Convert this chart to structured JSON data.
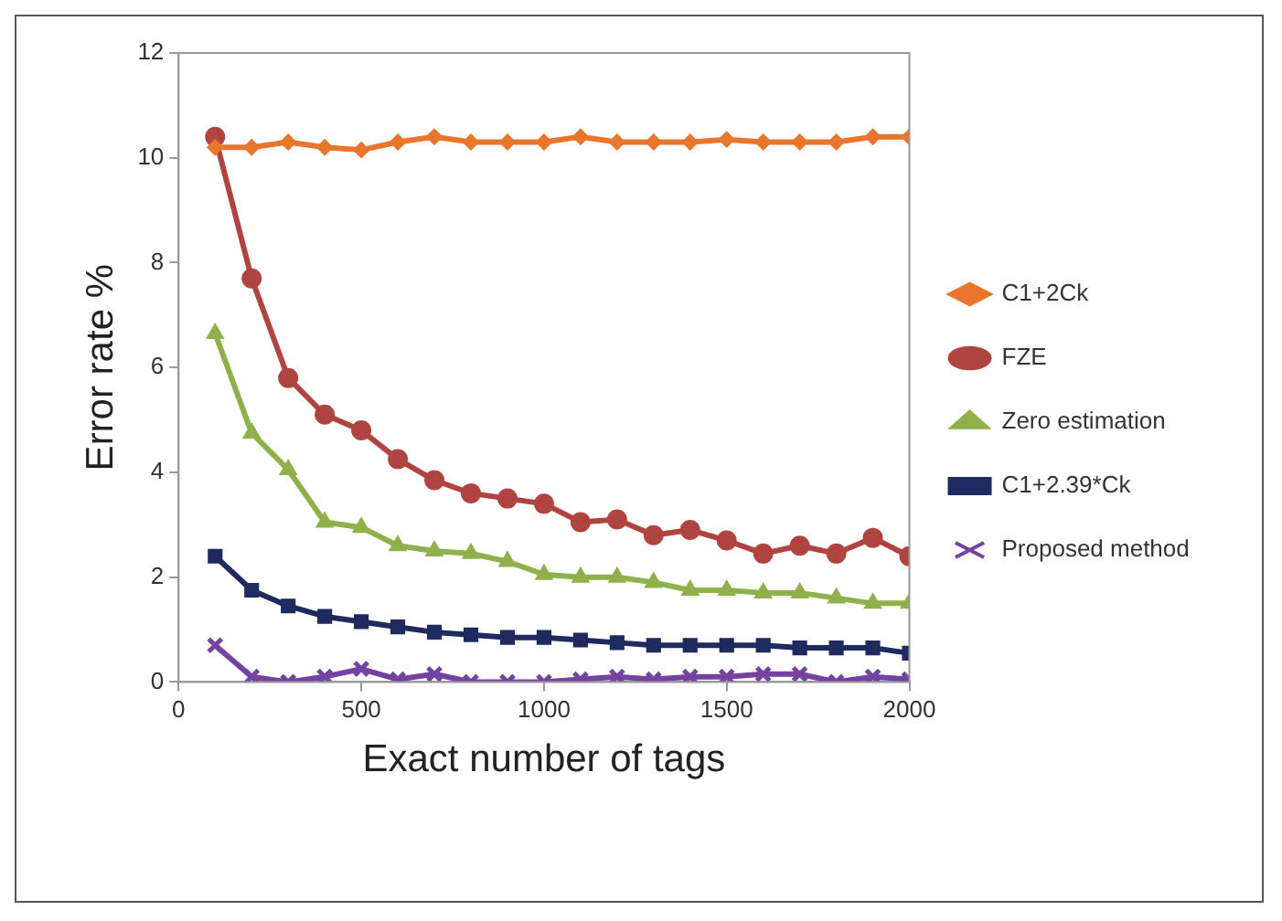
{
  "chart_data": {
    "type": "line",
    "xlabel": "Exact number of tags",
    "ylabel": "Error rate %",
    "x": [
      100,
      200,
      300,
      400,
      500,
      600,
      700,
      800,
      900,
      1000,
      1100,
      1200,
      1300,
      1400,
      1500,
      1600,
      1700,
      1800,
      1900,
      2000
    ],
    "xlim": [
      0,
      2000
    ],
    "xticks": [
      0,
      500,
      1000,
      1500,
      2000
    ],
    "ylim": [
      0,
      12
    ],
    "yticks": [
      0,
      2,
      4,
      6,
      8,
      10,
      12
    ],
    "grid": false,
    "legend": "right",
    "series": [
      {
        "name": "C1+2Ck",
        "color": "#e8762d",
        "marker": "diamond",
        "values": [
          10.2,
          10.2,
          10.3,
          10.2,
          10.15,
          10.3,
          10.4,
          10.3,
          10.3,
          10.3,
          10.4,
          10.3,
          10.3,
          10.3,
          10.35,
          10.3,
          10.3,
          10.3,
          10.4,
          10.4
        ]
      },
      {
        "name": "FZE",
        "color": "#b04440",
        "marker": "circle",
        "values": [
          10.4,
          7.7,
          5.8,
          5.1,
          4.8,
          4.25,
          3.85,
          3.6,
          3.5,
          3.4,
          3.05,
          3.1,
          2.8,
          2.9,
          2.7,
          2.45,
          2.6,
          2.45,
          2.75,
          2.4
        ]
      },
      {
        "name": "Zero estimation",
        "color": "#8fb04b",
        "marker": "triangle",
        "values": [
          6.65,
          4.75,
          4.05,
          3.05,
          2.95,
          2.6,
          2.5,
          2.45,
          2.3,
          2.05,
          2.0,
          2.0,
          1.9,
          1.75,
          1.75,
          1.7,
          1.7,
          1.6,
          1.5,
          1.5
        ]
      },
      {
        "name": "C1+2.39*Ck",
        "color": "#1f2a5e",
        "marker": "square",
        "values": [
          2.4,
          1.75,
          1.45,
          1.25,
          1.15,
          1.05,
          0.95,
          0.9,
          0.85,
          0.85,
          0.8,
          0.75,
          0.7,
          0.7,
          0.7,
          0.7,
          0.65,
          0.65,
          0.65,
          0.55
        ]
      },
      {
        "name": "Proposed method",
        "color": "#7442a0",
        "marker": "cross",
        "values": [
          0.7,
          0.1,
          0.0,
          0.1,
          0.25,
          0.05,
          0.15,
          0.0,
          0.0,
          0.0,
          0.05,
          0.1,
          0.05,
          0.1,
          0.1,
          0.15,
          0.15,
          0.0,
          0.1,
          0.05
        ]
      }
    ]
  }
}
